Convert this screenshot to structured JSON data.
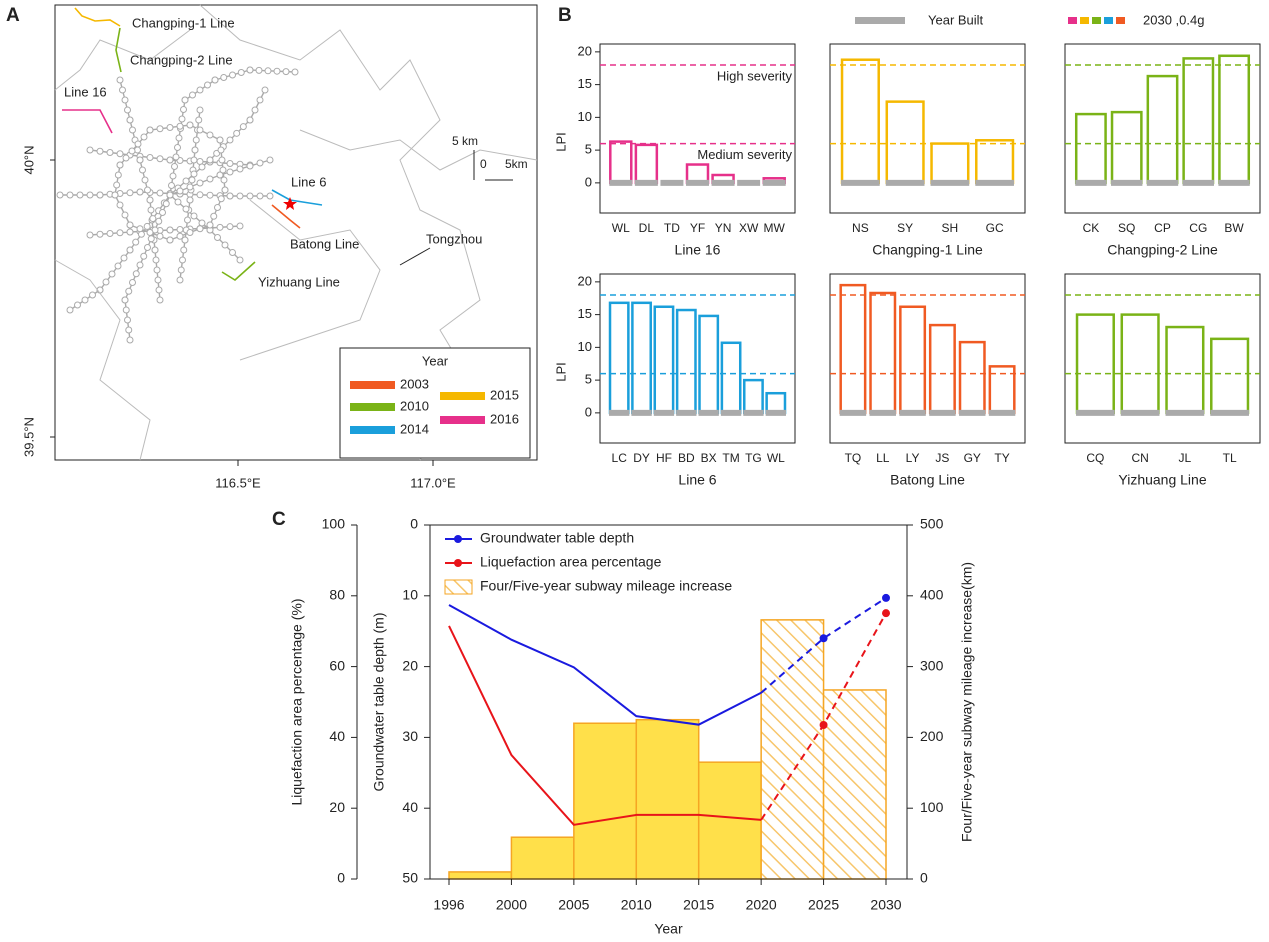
{
  "panel_labels": [
    "A",
    "B",
    "C"
  ],
  "map": {
    "line_labels": [
      {
        "name": "Changping-1 Line",
        "color": "#f5b800"
      },
      {
        "name": "Changping-2 Line",
        "color": "#7ab317"
      },
      {
        "name": "Line 16",
        "color": "#e6308a"
      },
      {
        "name": "Line 6",
        "color": "#1a9fdb"
      },
      {
        "name": "Batong Line",
        "color": "#f05a22"
      },
      {
        "name": "Yizhuang Line",
        "color": "#7ab317"
      }
    ],
    "place_label": "Tongzhou",
    "scale": {
      "title": "5 km",
      "zero": "0",
      "length": "5km"
    },
    "lat_labels": [
      "40°N",
      "39.5°N"
    ],
    "lon_labels": [
      "116.5°E",
      "117.0°E"
    ],
    "legend": {
      "title": "Year",
      "entries": [
        {
          "name": "2003",
          "color": "#f05a22"
        },
        {
          "name": "2010",
          "color": "#7ab317"
        },
        {
          "name": "2014",
          "color": "#1a9fdb"
        },
        {
          "name": "2015",
          "color": "#f5b800"
        },
        {
          "name": "2016",
          "color": "#e6308a"
        }
      ]
    }
  },
  "legend_b": [
    {
      "name": "Year Built",
      "color": "#aaaaaa"
    },
    {
      "name": "2030 ,0.4g",
      "colors": [
        "#e6308a",
        "#f5b800",
        "#7ab317",
        "#1a9fdb",
        "#f05a22"
      ]
    }
  ],
  "chart_data": [
    {
      "type": "bar",
      "xlabel": "Line 16",
      "ylabel": "LPI",
      "color": "#e6308a",
      "categories": [
        "WL",
        "DL",
        "TD",
        "YF",
        "YN",
        "XW",
        "MW"
      ],
      "values": [
        6.3,
        5.8,
        0,
        2.8,
        1.2,
        0,
        0.7
      ],
      "year_built": [
        0,
        0,
        0,
        0,
        0,
        0,
        0
      ],
      "ylim": [
        -4.6,
        21.2
      ],
      "yticks": [
        0,
        5,
        10,
        15,
        20
      ],
      "hlines": [
        18,
        6
      ],
      "hline_labels": [
        "High severity",
        "Medium severity"
      ]
    },
    {
      "type": "bar",
      "xlabel": "Changping-1 Line",
      "color": "#f5b800",
      "categories": [
        "NS",
        "SY",
        "SH",
        "GC"
      ],
      "values": [
        18.8,
        12.4,
        6.0,
        6.5
      ],
      "year_built": [
        0,
        0,
        0,
        0
      ],
      "ylim": [
        -4.6,
        21.2
      ],
      "hlines": [
        18,
        6
      ]
    },
    {
      "type": "bar",
      "xlabel": "Changping-2 Line",
      "color": "#7ab317",
      "categories": [
        "CK",
        "SQ",
        "CP",
        "CG",
        "BW"
      ],
      "values": [
        10.5,
        10.8,
        16.3,
        19.0,
        19.4
      ],
      "year_built": [
        0,
        0,
        0,
        0,
        0
      ],
      "ylim": [
        -4.6,
        21.2
      ],
      "hlines": [
        18,
        6
      ]
    },
    {
      "type": "bar",
      "xlabel": "Line 6",
      "ylabel": "LPI",
      "color": "#1a9fdb",
      "categories": [
        "LC",
        "DY",
        "HF",
        "BD",
        "BX",
        "TM",
        "TG",
        "WL"
      ],
      "values": [
        16.8,
        16.8,
        16.2,
        15.7,
        14.8,
        10.7,
        5.0,
        3.0
      ],
      "year_built": [
        0,
        0,
        0,
        0,
        0,
        0,
        0,
        0
      ],
      "ylim": [
        -4.6,
        21.2
      ],
      "yticks": [
        0,
        5,
        10,
        15,
        20
      ],
      "hlines": [
        18,
        6
      ]
    },
    {
      "type": "bar",
      "xlabel": "Batong Line",
      "color": "#f05a22",
      "categories": [
        "TQ",
        "LL",
        "LY",
        "JS",
        "GY",
        "TY"
      ],
      "values": [
        19.5,
        18.3,
        16.2,
        13.4,
        10.8,
        7.1
      ],
      "year_built": [
        0,
        0,
        0,
        0,
        0,
        0
      ],
      "ylim": [
        -4.6,
        21.2
      ],
      "hlines": [
        18,
        6
      ]
    },
    {
      "type": "bar",
      "xlabel": "Yizhuang Line",
      "color": "#7ab317",
      "categories": [
        "CQ",
        "CN",
        "JL",
        "TL"
      ],
      "values": [
        15.0,
        15.0,
        13.1,
        11.3
      ],
      "year_built": [
        0,
        0,
        0,
        0
      ],
      "ylim": [
        -4.6,
        21.2
      ],
      "hlines": [
        18,
        6
      ]
    },
    {
      "type": "combo",
      "xlabel": "Year",
      "ylabel": "Liquefaction area percentage (%)",
      "y3label": "Groundwater table depth (m)",
      "y2label": "Four/Five-year subway mileage increase(km)",
      "categories": [
        "1996",
        "2000",
        "2005",
        "2010",
        "2015",
        "2020",
        "2025",
        "2030"
      ],
      "projected": [
        false,
        false,
        false,
        false,
        false,
        false,
        true,
        true
      ],
      "ylim": [
        0,
        100
      ],
      "yticks": [
        0,
        20,
        40,
        60,
        80,
        100
      ],
      "y3lim": [
        50,
        0
      ],
      "y3ticks": [
        0,
        10,
        20,
        30,
        40,
        50
      ],
      "y2lim": [
        0,
        500
      ],
      "y2ticks": [
        0,
        100,
        200,
        300,
        400,
        500
      ],
      "series": [
        {
          "name": "Groundwater table depth",
          "color": "#1a1adf",
          "axis": "y3",
          "kind": "line",
          "values": [
            11.3,
            16.2,
            20.1,
            27.0,
            28.2,
            23.7,
            16.0,
            10.3
          ]
        },
        {
          "name": "Liquefaction area percentage",
          "color": "#e8141a",
          "kind": "line",
          "values": [
            71.5,
            35.0,
            15.3,
            18.1,
            18.1,
            16.7,
            43.5,
            75.1
          ]
        },
        {
          "name": "Four/Five-year subway mileage increase",
          "color": "#ffe04a",
          "axis": "y2",
          "kind": "bar",
          "values": [
            null,
            10,
            59,
            220,
            225,
            165,
            366,
            267
          ]
        }
      ]
    }
  ]
}
